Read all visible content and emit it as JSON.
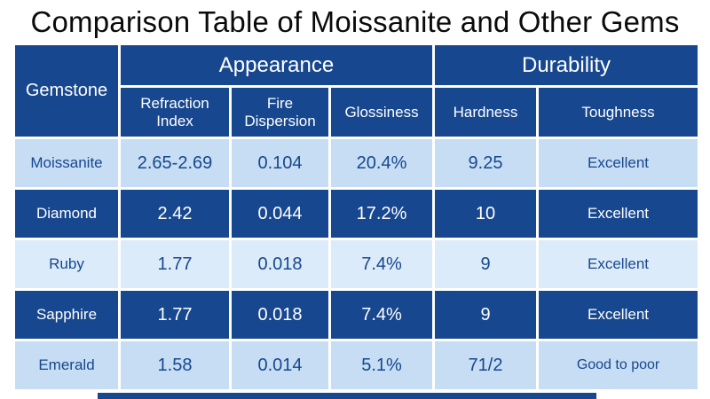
{
  "title": "Comparison Table of Moissanite and Other Gems",
  "table": {
    "gemstone_header": "Gemstone",
    "groups": [
      {
        "label": "Appearance",
        "colspan": 3
      },
      {
        "label": "Durability",
        "colspan": 2
      }
    ],
    "columns": [
      "Refraction Index",
      "Fire Dispersion",
      "Glossiness",
      "Hardness",
      "Toughness"
    ],
    "rows": [
      {
        "gemstone": "Moissanite",
        "refraction_index": "2.65-2.69",
        "fire_dispersion": "0.104",
        "glossiness": "20.4%",
        "hardness": "9.25",
        "toughness": "Excellent"
      },
      {
        "gemstone": "Diamond",
        "refraction_index": "2.42",
        "fire_dispersion": "0.044",
        "glossiness": "17.2%",
        "hardness": "10",
        "toughness": "Excellent"
      },
      {
        "gemstone": "Ruby",
        "refraction_index": "1.77",
        "fire_dispersion": "0.018",
        "glossiness": "7.4%",
        "hardness": "9",
        "toughness": "Excellent"
      },
      {
        "gemstone": "Sapphire",
        "refraction_index": "1.77",
        "fire_dispersion": "0.018",
        "glossiness": "7.4%",
        "hardness": "9",
        "toughness": "Excellent"
      },
      {
        "gemstone": "Emerald",
        "refraction_index": "1.58",
        "fire_dispersion": "0.014",
        "glossiness": "5.1%",
        "hardness": "71/2",
        "toughness": "Good to poor"
      }
    ]
  },
  "colors": {
    "header_bg": "#17478f",
    "dark_row_bg": "#17478f",
    "light_row_bg": "#c6ddf4",
    "lighter_row_bg": "#dcebfa",
    "dark_text": "#17478f",
    "light_text": "#ffffff",
    "title_text": "#0b0b0b"
  }
}
